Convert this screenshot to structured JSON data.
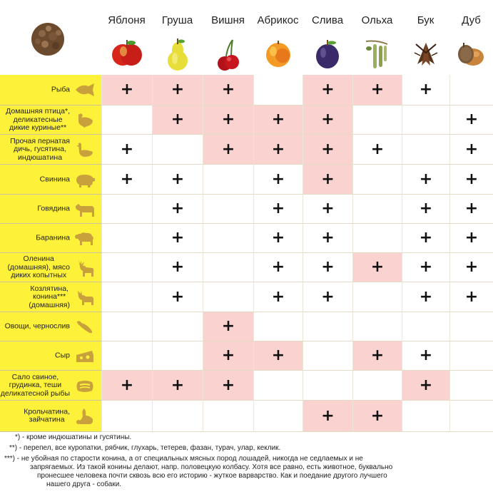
{
  "columns": [
    {
      "name": "Яблоня",
      "icon": "apple-icon"
    },
    {
      "name": "Груша",
      "icon": "pear-icon"
    },
    {
      "name": "Вишня",
      "icon": "cherry-icon"
    },
    {
      "name": "Абрикос",
      "icon": "apricot-icon"
    },
    {
      "name": "Слива",
      "icon": "plum-icon"
    },
    {
      "name": "Ольха",
      "icon": "alder-catkin-icon"
    },
    {
      "name": "Бук",
      "icon": "beechnut-icon"
    },
    {
      "name": "Дуб",
      "icon": "acorn-icon"
    }
  ],
  "corner_icon": "wood-chips-icon",
  "plus_symbol": "+",
  "rows": [
    {
      "label": "Рыба",
      "icon": "fish-icon",
      "cells": [
        "+",
        "+",
        "+",
        "",
        "+",
        "+",
        "+",
        ""
      ],
      "pink": [
        1,
        1,
        1,
        0,
        1,
        1,
        0,
        0
      ]
    },
    {
      "label": "Домашняя птица*,\nделикатесные\nдикие куриные**",
      "icon": "chicken-icon",
      "cells": [
        "",
        "+",
        "+",
        "+",
        "+",
        "",
        "",
        "+"
      ],
      "pink": [
        0,
        1,
        1,
        1,
        1,
        0,
        0,
        0
      ]
    },
    {
      "label": "Прочая пернатая\nдичь, гусятина,\nиндюшатина",
      "icon": "goose-icon",
      "cells": [
        "+",
        "",
        "+",
        "+",
        "+",
        "+",
        "",
        "+"
      ],
      "pink": [
        0,
        0,
        1,
        1,
        1,
        0,
        0,
        0
      ]
    },
    {
      "label": "Свинина",
      "icon": "pig-icon",
      "cells": [
        "+",
        "+",
        "",
        "+",
        "+",
        "",
        "+",
        "+"
      ],
      "pink": [
        0,
        0,
        0,
        0,
        1,
        0,
        0,
        0
      ]
    },
    {
      "label": "Говядина",
      "icon": "cow-icon",
      "cells": [
        "",
        "+",
        "",
        "+",
        "+",
        "",
        "+",
        "+"
      ],
      "pink": [
        0,
        0,
        0,
        0,
        0,
        0,
        0,
        0
      ]
    },
    {
      "label": "Баранина",
      "icon": "sheep-icon",
      "cells": [
        "",
        "+",
        "",
        "+",
        "+",
        "",
        "+",
        "+"
      ],
      "pink": [
        0,
        0,
        0,
        0,
        0,
        0,
        0,
        0
      ]
    },
    {
      "label": "Оленина\n(домашняя), мясо\nдиких копытных",
      "icon": "deer-icon",
      "cells": [
        "",
        "+",
        "",
        "+",
        "+",
        "+",
        "+",
        "+"
      ],
      "pink": [
        0,
        0,
        0,
        0,
        0,
        1,
        0,
        0
      ]
    },
    {
      "label": "Козлятина,\nконина***\n(домашняя)",
      "icon": "goat-icon",
      "cells": [
        "",
        "+",
        "",
        "+",
        "+",
        "",
        "+",
        "+"
      ],
      "pink": [
        0,
        0,
        0,
        0,
        0,
        0,
        0,
        0
      ]
    },
    {
      "label": "Овощи, чернослив",
      "icon": "pepper-icon",
      "cells": [
        "",
        "",
        "+",
        "",
        "",
        "",
        "",
        ""
      ],
      "pink": [
        0,
        0,
        1,
        0,
        0,
        0,
        0,
        0
      ]
    },
    {
      "label": "Сыр",
      "icon": "cheese-icon",
      "cells": [
        "",
        "",
        "+",
        "+",
        "",
        "+",
        "+",
        ""
      ],
      "pink": [
        0,
        0,
        1,
        1,
        0,
        1,
        0,
        0
      ]
    },
    {
      "label": "Сало свиное,\nгрудинка, теши\nделикатесной рыбы",
      "icon": "bacon-icon",
      "cells": [
        "+",
        "+",
        "+",
        "",
        "",
        "",
        "+",
        ""
      ],
      "pink": [
        1,
        1,
        1,
        0,
        0,
        0,
        1,
        0
      ]
    },
    {
      "label": "Крольчатина,\nзайчатина",
      "icon": "rabbit-icon",
      "cells": [
        "",
        "",
        "",
        "",
        "+",
        "+",
        "",
        ""
      ],
      "pink": [
        0,
        0,
        0,
        0,
        1,
        1,
        0,
        0
      ]
    }
  ],
  "footnotes": {
    "n1": "*) - кроме индюшатины и гусятины.",
    "n2": "**) - перепел, все куропатки, рябчик, глухарь, тетерев, фазан, турач, улар, кеклик.",
    "n3a": "***) - не убойная по старости конина, а от специальных мясных пород лошадей, никогда не седлаемых и не",
    "n3b": "запрягаемых. Из такой конины делают, напр. половецкую колбасу. Хотя все равно, есть животное, буквально",
    "n3c": "пронесшее человека почти сквозь всю его историю - жуткое варварство. Как и поедание другого лучшего",
    "n3d": "нашего друга - собаки."
  },
  "colors": {
    "label_bg": "#fdf13a",
    "highlight": "#fad2cf",
    "icon_gold": "#c8a13c"
  }
}
